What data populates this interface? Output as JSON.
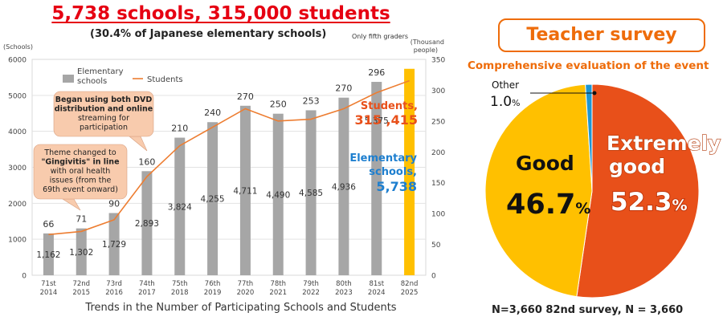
{
  "headline": "5,738 schools, 315,000 students",
  "subtitle": "(30.4% of Japanese elementary schools)",
  "note": "Only fifth graders",
  "caption": "Trends in the Number of Participating Schools and Students",
  "callouts": {
    "first_lines": [
      "Theme changed to",
      "\"Gingivitis\" in line",
      "with oral health",
      "issues (from the",
      "69th event onward)"
    ],
    "second_lines": [
      "Began using both DVD",
      "distribution and online",
      "streaming for",
      "participation"
    ]
  },
  "highlights": {
    "students_label": "Students,",
    "students_value": "315 ,415",
    "schools_label_1": "Elementary",
    "schools_label_2": "schools,",
    "schools_value": "5,738"
  },
  "chart_data": {
    "type": "bar",
    "categories": [
      [
        "71st",
        "2014"
      ],
      [
        "72nd",
        "2015"
      ],
      [
        "73rd",
        "2016"
      ],
      [
        "74th",
        "2017"
      ],
      [
        "75th",
        "2018"
      ],
      [
        "76th",
        "2019"
      ],
      [
        "77th",
        "2020"
      ],
      [
        "78th",
        "2021"
      ],
      [
        "79th",
        "2022"
      ],
      [
        "80th",
        "2023"
      ],
      [
        "81st",
        "2024"
      ],
      [
        "82nd",
        "2025"
      ]
    ],
    "series": [
      {
        "name": "Elementary schools",
        "kind": "bar",
        "axis": "left",
        "values": [
          1162,
          1302,
          1729,
          2893,
          3824,
          4255,
          4711,
          4490,
          4585,
          4936,
          5375,
          5738
        ],
        "labels": [
          "1,162",
          "1,302",
          "1,729",
          "2,893",
          "3,824",
          "4,255",
          "4,711",
          "4,490",
          "4,585",
          "4,936",
          "5,375",
          ""
        ],
        "color": "#a6a6a6",
        "highlight_color": "#ffc000"
      },
      {
        "name": "Students",
        "kind": "line",
        "axis": "right",
        "values": [
          66,
          71,
          90,
          160,
          210,
          240,
          270,
          250,
          253,
          270,
          296,
          315.415
        ],
        "labels": [
          "66",
          "71",
          "90",
          "160",
          "210",
          "240",
          "270",
          "250",
          "253",
          "270",
          "296",
          ""
        ],
        "color": "#ed7d31"
      }
    ],
    "legend": {
      "schools_line1": "Elementary",
      "schools_line2": "schools",
      "students": "Students"
    },
    "y_left": {
      "unit": "(Schools)",
      "ticks": [
        "0",
        "1000",
        "2000",
        "3000",
        "4000",
        "5000",
        "6000"
      ],
      "range": [
        0,
        6000
      ]
    },
    "y_right": {
      "unit1": "(Thousand",
      "unit2": "people)",
      "ticks": [
        "0",
        "50",
        "100",
        "150",
        "200",
        "250",
        "300",
        "350"
      ],
      "range": [
        0,
        350
      ]
    },
    "grid": true
  },
  "survey": {
    "title": "Teacher survey",
    "subtitle": "Comprehensive evaluation of the event",
    "footer": "N=3,660  82nd survey, N = 3,660",
    "chart_data": {
      "type": "pie",
      "slices": [
        {
          "label_1": "Extremely",
          "label_2": "good",
          "value": 52.3,
          "num": "52.3",
          "pct": "%",
          "color": "#e8501a"
        },
        {
          "label_1": "Good",
          "label_2": "",
          "value": 46.7,
          "num": "46.7",
          "pct": "%",
          "color": "#ffc000"
        },
        {
          "label_1": "Other",
          "label_2": "",
          "value": 1.0,
          "num": "1.0",
          "pct": "%",
          "color": "#1e96d2"
        }
      ]
    }
  }
}
